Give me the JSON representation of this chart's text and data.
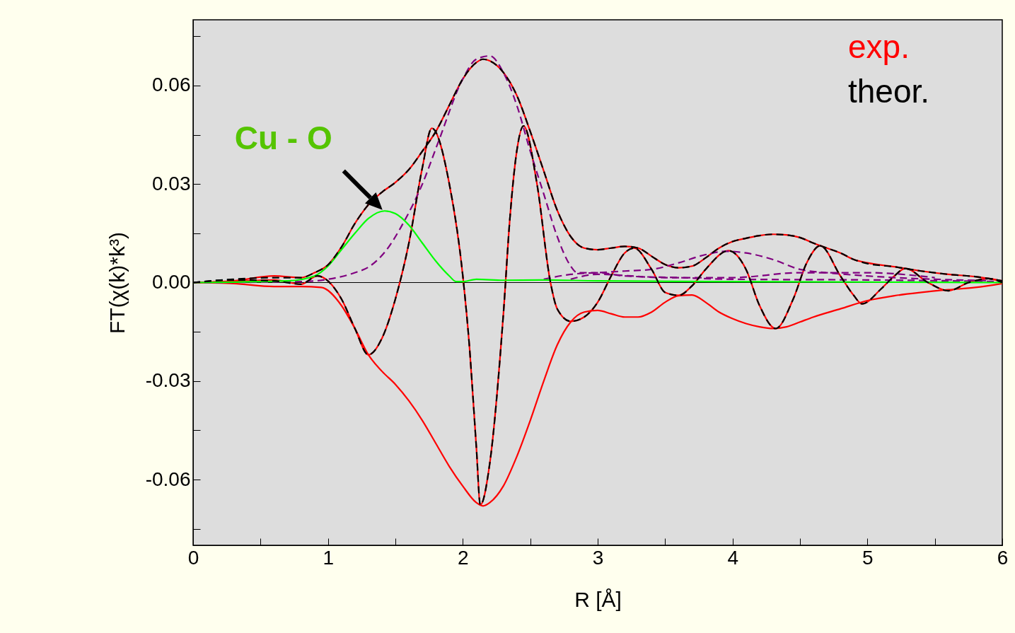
{
  "chart_data": {
    "type": "line",
    "xlabel": "R [Å]",
    "ylabel": "FT(χ(k)*k³)",
    "xlim": [
      0,
      6
    ],
    "ylim": [
      -0.08,
      0.08
    ],
    "xticks": [
      0,
      {
        "value": 0.5,
        "label": null
      },
      1,
      {
        "value": 1.5,
        "label": null
      },
      2,
      {
        "value": 2.5,
        "label": null
      },
      3,
      {
        "value": 3.5,
        "label": null
      },
      4,
      {
        "value": 4.5,
        "label": null
      },
      5,
      {
        "value": 5.5,
        "label": null
      },
      6
    ],
    "yticks": [
      {
        "value": -0.075,
        "label": null
      },
      -0.06,
      {
        "value": -0.045,
        "label": null
      },
      -0.03,
      {
        "value": -0.015,
        "label": null
      },
      {
        "value": 0,
        "label": "0.00"
      },
      {
        "value": 0.015,
        "label": null
      },
      0.03,
      {
        "value": 0.045,
        "label": null
      },
      0.06,
      {
        "value": 0.075,
        "label": null
      }
    ],
    "grid": false,
    "marker": "none",
    "ref_lines": [
      {
        "axis": "y",
        "value": 0,
        "color": "#000000"
      }
    ],
    "annotations": [
      {
        "text": "Cu - O",
        "x": 1.42,
        "y": 0.0215
      }
    ],
    "series": [
      {
        "name": "exp.",
        "color": "#ff0000",
        "line_style": "solid",
        "x": [
          0,
          0.3,
          0.6,
          0.8,
          0.9,
          1.0,
          1.1,
          1.2,
          1.3,
          1.4,
          1.5,
          1.6,
          1.7,
          1.8,
          1.9,
          2.0,
          2.1,
          2.15,
          2.2,
          2.3,
          2.4,
          2.5,
          2.6,
          2.7,
          2.8,
          2.9,
          3.0,
          3.1,
          3.2,
          3.3,
          3.4,
          3.5,
          3.6,
          3.7,
          3.8,
          3.9,
          4.0,
          4.1,
          4.2,
          4.3,
          4.4,
          4.5,
          4.6,
          4.7,
          4.8,
          4.9,
          5.0,
          5.2,
          5.4,
          5.6,
          5.8,
          6.0
        ],
        "values": [
          0,
          0.0005,
          0.002,
          0.0015,
          0.003,
          0.0054,
          0.0108,
          0.018,
          0.0237,
          0.0275,
          0.0305,
          0.0344,
          0.04,
          0.046,
          0.054,
          0.062,
          0.067,
          0.068,
          0.0675,
          0.064,
          0.057,
          0.046,
          0.034,
          0.022,
          0.014,
          0.0105,
          0.01,
          0.0105,
          0.011,
          0.0105,
          0.008,
          0.0055,
          0.0045,
          0.005,
          0.0075,
          0.0105,
          0.0125,
          0.0135,
          0.0143,
          0.0147,
          0.0145,
          0.0137,
          0.012,
          0.0105,
          0.009,
          0.007,
          0.006,
          0.0048,
          0.0035,
          0.0025,
          0.0018,
          0.0005
        ]
      },
      {
        "color": "#ff0000",
        "line_style": "solid",
        "x": [
          0,
          0.3,
          0.6,
          0.8,
          0.92,
          1.1,
          1.2,
          1.3,
          1.4,
          1.5,
          1.6,
          1.7,
          1.77,
          1.9,
          2.0,
          2.05,
          2.1,
          2.13,
          2.2,
          2.3,
          2.35,
          2.4,
          2.45,
          2.55,
          2.65,
          2.7,
          2.8,
          2.9,
          3.0,
          3.1,
          3.2,
          3.27,
          3.4,
          3.5,
          3.6,
          3.7,
          3.8,
          3.97,
          4.1,
          4.2,
          4.32,
          4.45,
          4.55,
          4.65,
          4.8,
          4.9,
          4.96,
          5.1,
          5.2,
          5.28,
          5.45,
          5.6,
          5.75,
          5.9,
          6.0
        ],
        "values": [
          0,
          0.0003,
          0.0008,
          -0.0005,
          0.002,
          -0.005,
          -0.014,
          -0.022,
          -0.017,
          -0.005,
          0.012,
          0.035,
          0.047,
          0.03,
          0.002,
          -0.02,
          -0.05,
          -0.0677,
          -0.055,
          -0.01,
          0.02,
          0.04,
          0.0477,
          0.03,
          0,
          -0.008,
          -0.0118,
          -0.0105,
          -0.006,
          0.002,
          0.009,
          0.0105,
          0.004,
          -0.003,
          -0.0039,
          -0.001,
          0.004,
          0.0097,
          0.004,
          -0.007,
          -0.014,
          -0.005,
          0.006,
          0.0112,
          0.002,
          -0.004,
          -0.0065,
          -0.002,
          0.002,
          0.0043,
          0,
          -0.0025,
          0,
          0.0012,
          0
        ]
      },
      {
        "color": "#ff0000",
        "line_style": "solid",
        "x": [
          0,
          0.3,
          0.6,
          0.8,
          0.95,
          1.1,
          1.2,
          1.3,
          1.4,
          1.5,
          1.6,
          1.7,
          1.8,
          1.9,
          2.0,
          2.1,
          2.15,
          2.2,
          2.3,
          2.4,
          2.5,
          2.6,
          2.7,
          2.8,
          2.9,
          3.0,
          3.1,
          3.2,
          3.3,
          3.4,
          3.5,
          3.6,
          3.7,
          3.8,
          3.9,
          4.0,
          4.1,
          4.2,
          4.3,
          4.4,
          4.5,
          4.6,
          4.8,
          5.0,
          5.2,
          5.4,
          5.6,
          5.8,
          6.0
        ],
        "values": [
          0,
          -0.0003,
          -0.0012,
          -0.0012,
          -0.0015,
          -0.007,
          -0.014,
          -0.022,
          -0.027,
          -0.031,
          -0.036,
          -0.042,
          -0.049,
          -0.056,
          -0.062,
          -0.067,
          -0.068,
          -0.067,
          -0.062,
          -0.053,
          -0.042,
          -0.03,
          -0.019,
          -0.012,
          -0.009,
          -0.0085,
          -0.0095,
          -0.0105,
          -0.0105,
          -0.009,
          -0.006,
          -0.004,
          -0.0038,
          -0.006,
          -0.009,
          -0.011,
          -0.0125,
          -0.0135,
          -0.014,
          -0.0135,
          -0.012,
          -0.0105,
          -0.008,
          -0.0055,
          -0.004,
          -0.003,
          -0.0022,
          -0.0015,
          -0.0003
        ]
      },
      {
        "color": "#800080",
        "line_style": "dashed",
        "x": [
          0,
          0.8,
          1.0,
          1.2,
          1.3,
          1.42,
          1.57,
          1.7,
          1.82,
          2.0,
          2.1,
          2.2,
          2.3,
          2.4,
          2.5,
          2.6,
          2.7,
          2.8,
          2.85,
          3.0,
          3.2,
          3.6,
          4.0,
          5.0,
          6.0
        ],
        "values": [
          0,
          0.0003,
          0.001,
          0.003,
          0.0047,
          0.0092,
          0.019,
          0.03,
          0.043,
          0.062,
          0.068,
          0.069,
          0.064,
          0.054,
          0.04,
          0.027,
          0.014,
          0.005,
          0.003,
          0.003,
          0.002,
          0.0015,
          0.001,
          0.0008,
          0.0003
        ]
      },
      {
        "color": "#800080",
        "line_style": "dashed",
        "x": [
          2.6,
          2.8,
          3.0,
          3.2,
          3.4,
          3.6,
          3.8,
          3.95,
          4.1,
          4.3,
          4.5,
          4.7,
          5.0,
          5.5,
          5.9
        ],
        "values": [
          0.001,
          0.0025,
          0.003,
          0.0035,
          0.004,
          0.006,
          0.0085,
          0.0095,
          0.009,
          0.007,
          0.004,
          0.003,
          0.002,
          0.001,
          0.0006
        ]
      },
      {
        "color": "#800080",
        "line_style": "dashed",
        "x": [
          2.8,
          3.0,
          3.5,
          4.0,
          4.5,
          5.0,
          5.5
        ],
        "values": [
          0.001,
          0.0025,
          0.0015,
          0.0015,
          0.003,
          0.003,
          0.0015
        ]
      },
      {
        "color": "#00ff00",
        "line_style": "solid",
        "x": [
          0,
          0.7,
          0.9,
          1.0,
          1.1,
          1.2,
          1.3,
          1.42,
          1.5,
          1.6,
          1.7,
          1.8,
          1.9,
          1.95,
          2.0,
          2.1,
          2.3,
          2.6,
          3.0,
          4.0,
          6.0
        ],
        "values": [
          0,
          0.0005,
          0.002,
          0.005,
          0.01,
          0.015,
          0.0195,
          0.0218,
          0.021,
          0.0175,
          0.012,
          0.0065,
          0.002,
          0.0003,
          0.0003,
          0.001,
          0.0007,
          0.0008,
          0.0005,
          0.0003,
          0
        ]
      },
      {
        "name": "theor.",
        "color": "#000000",
        "line_style": "dashed",
        "x": [
          0,
          0.3,
          0.6,
          0.8,
          0.9,
          1.0,
          1.1,
          1.2,
          1.3,
          1.4,
          1.5,
          1.6,
          1.7,
          1.8,
          1.9,
          2.0,
          2.1,
          2.15,
          2.2,
          2.3,
          2.4,
          2.5,
          2.6,
          2.7,
          2.8,
          2.9,
          3.0,
          3.1,
          3.2,
          3.3,
          3.4,
          3.5,
          3.6,
          3.7,
          3.8,
          3.9,
          4.0,
          4.1,
          4.2,
          4.3,
          4.4,
          4.5,
          4.6,
          4.7,
          4.8,
          4.9,
          5.0,
          5.2,
          5.4,
          5.6,
          5.8,
          6.0
        ],
        "values": [
          0,
          0.001,
          0.0015,
          0.0015,
          0.003,
          0.0054,
          0.0108,
          0.018,
          0.0237,
          0.0275,
          0.0305,
          0.0344,
          0.04,
          0.046,
          0.054,
          0.062,
          0.067,
          0.068,
          0.0675,
          0.064,
          0.057,
          0.046,
          0.034,
          0.022,
          0.014,
          0.0105,
          0.01,
          0.0105,
          0.011,
          0.0105,
          0.008,
          0.0055,
          0.0045,
          0.005,
          0.0075,
          0.0105,
          0.0125,
          0.0135,
          0.0143,
          0.0147,
          0.0145,
          0.0137,
          0.012,
          0.0105,
          0.009,
          0.007,
          0.0058,
          0.0048,
          0.0035,
          0.0025,
          0.0018,
          0.0005
        ]
      },
      {
        "color": "#000000",
        "line_style": "dashed",
        "x": [
          0,
          0.3,
          0.6,
          0.8,
          0.92,
          1.1,
          1.2,
          1.3,
          1.4,
          1.5,
          1.6,
          1.7,
          1.77,
          1.9,
          2.0,
          2.05,
          2.1,
          2.13,
          2.2,
          2.3,
          2.35,
          2.4,
          2.45,
          2.55,
          2.65,
          2.7,
          2.8,
          2.9,
          3.0,
          3.1,
          3.2,
          3.27,
          3.4,
          3.5,
          3.6,
          3.7,
          3.8,
          3.97,
          4.1,
          4.2,
          4.32,
          4.45,
          4.55,
          4.65,
          4.8,
          4.9,
          4.96,
          5.1,
          5.2,
          5.28,
          5.45,
          5.6,
          5.75,
          5.9,
          6.0
        ],
        "values": [
          0,
          0.0008,
          0.0005,
          -0.0005,
          0.002,
          -0.005,
          -0.014,
          -0.022,
          -0.017,
          -0.005,
          0.012,
          0.035,
          0.047,
          0.03,
          0.002,
          -0.02,
          -0.05,
          -0.0677,
          -0.055,
          -0.01,
          0.02,
          0.04,
          0.0477,
          0.03,
          0,
          -0.008,
          -0.0118,
          -0.0105,
          -0.006,
          0.002,
          0.009,
          0.0105,
          0.004,
          -0.003,
          -0.0039,
          -0.001,
          0.004,
          0.0097,
          0.004,
          -0.007,
          -0.014,
          -0.005,
          0.006,
          0.0112,
          0.002,
          -0.004,
          -0.0065,
          -0.002,
          0.002,
          0.0043,
          0,
          -0.0025,
          0,
          0.0012,
          0
        ]
      }
    ]
  }
}
